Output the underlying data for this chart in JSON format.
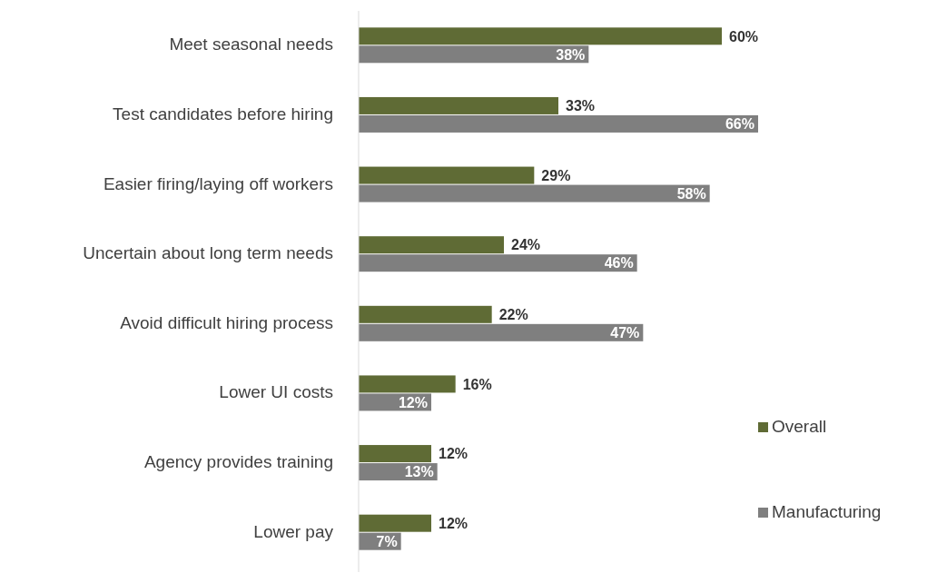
{
  "chart_data": {
    "type": "bar",
    "orientation": "horizontal",
    "categories": [
      "Meet seasonal needs",
      "Test candidates before hiring",
      "Easier firing/laying off workers",
      "Uncertain about long term needs",
      "Avoid difficult hiring process",
      "Lower UI costs",
      "Agency provides training",
      "Lower pay"
    ],
    "series": [
      {
        "name": "Overall",
        "color": "#5f6b35",
        "values": [
          60,
          33,
          29,
          24,
          22,
          16,
          12,
          12
        ],
        "value_labels": [
          "60%",
          "33%",
          "29%",
          "24%",
          "22%",
          "16%",
          "12%",
          "12%"
        ]
      },
      {
        "name": "Manufacturing",
        "color": "#7f7f7f",
        "values": [
          38,
          66,
          58,
          46,
          47,
          12,
          13,
          7
        ],
        "value_labels": [
          "38%",
          "66%",
          "58%",
          "46%",
          "47%",
          "12%",
          "13%",
          "7%"
        ]
      }
    ],
    "legend": "right"
  }
}
